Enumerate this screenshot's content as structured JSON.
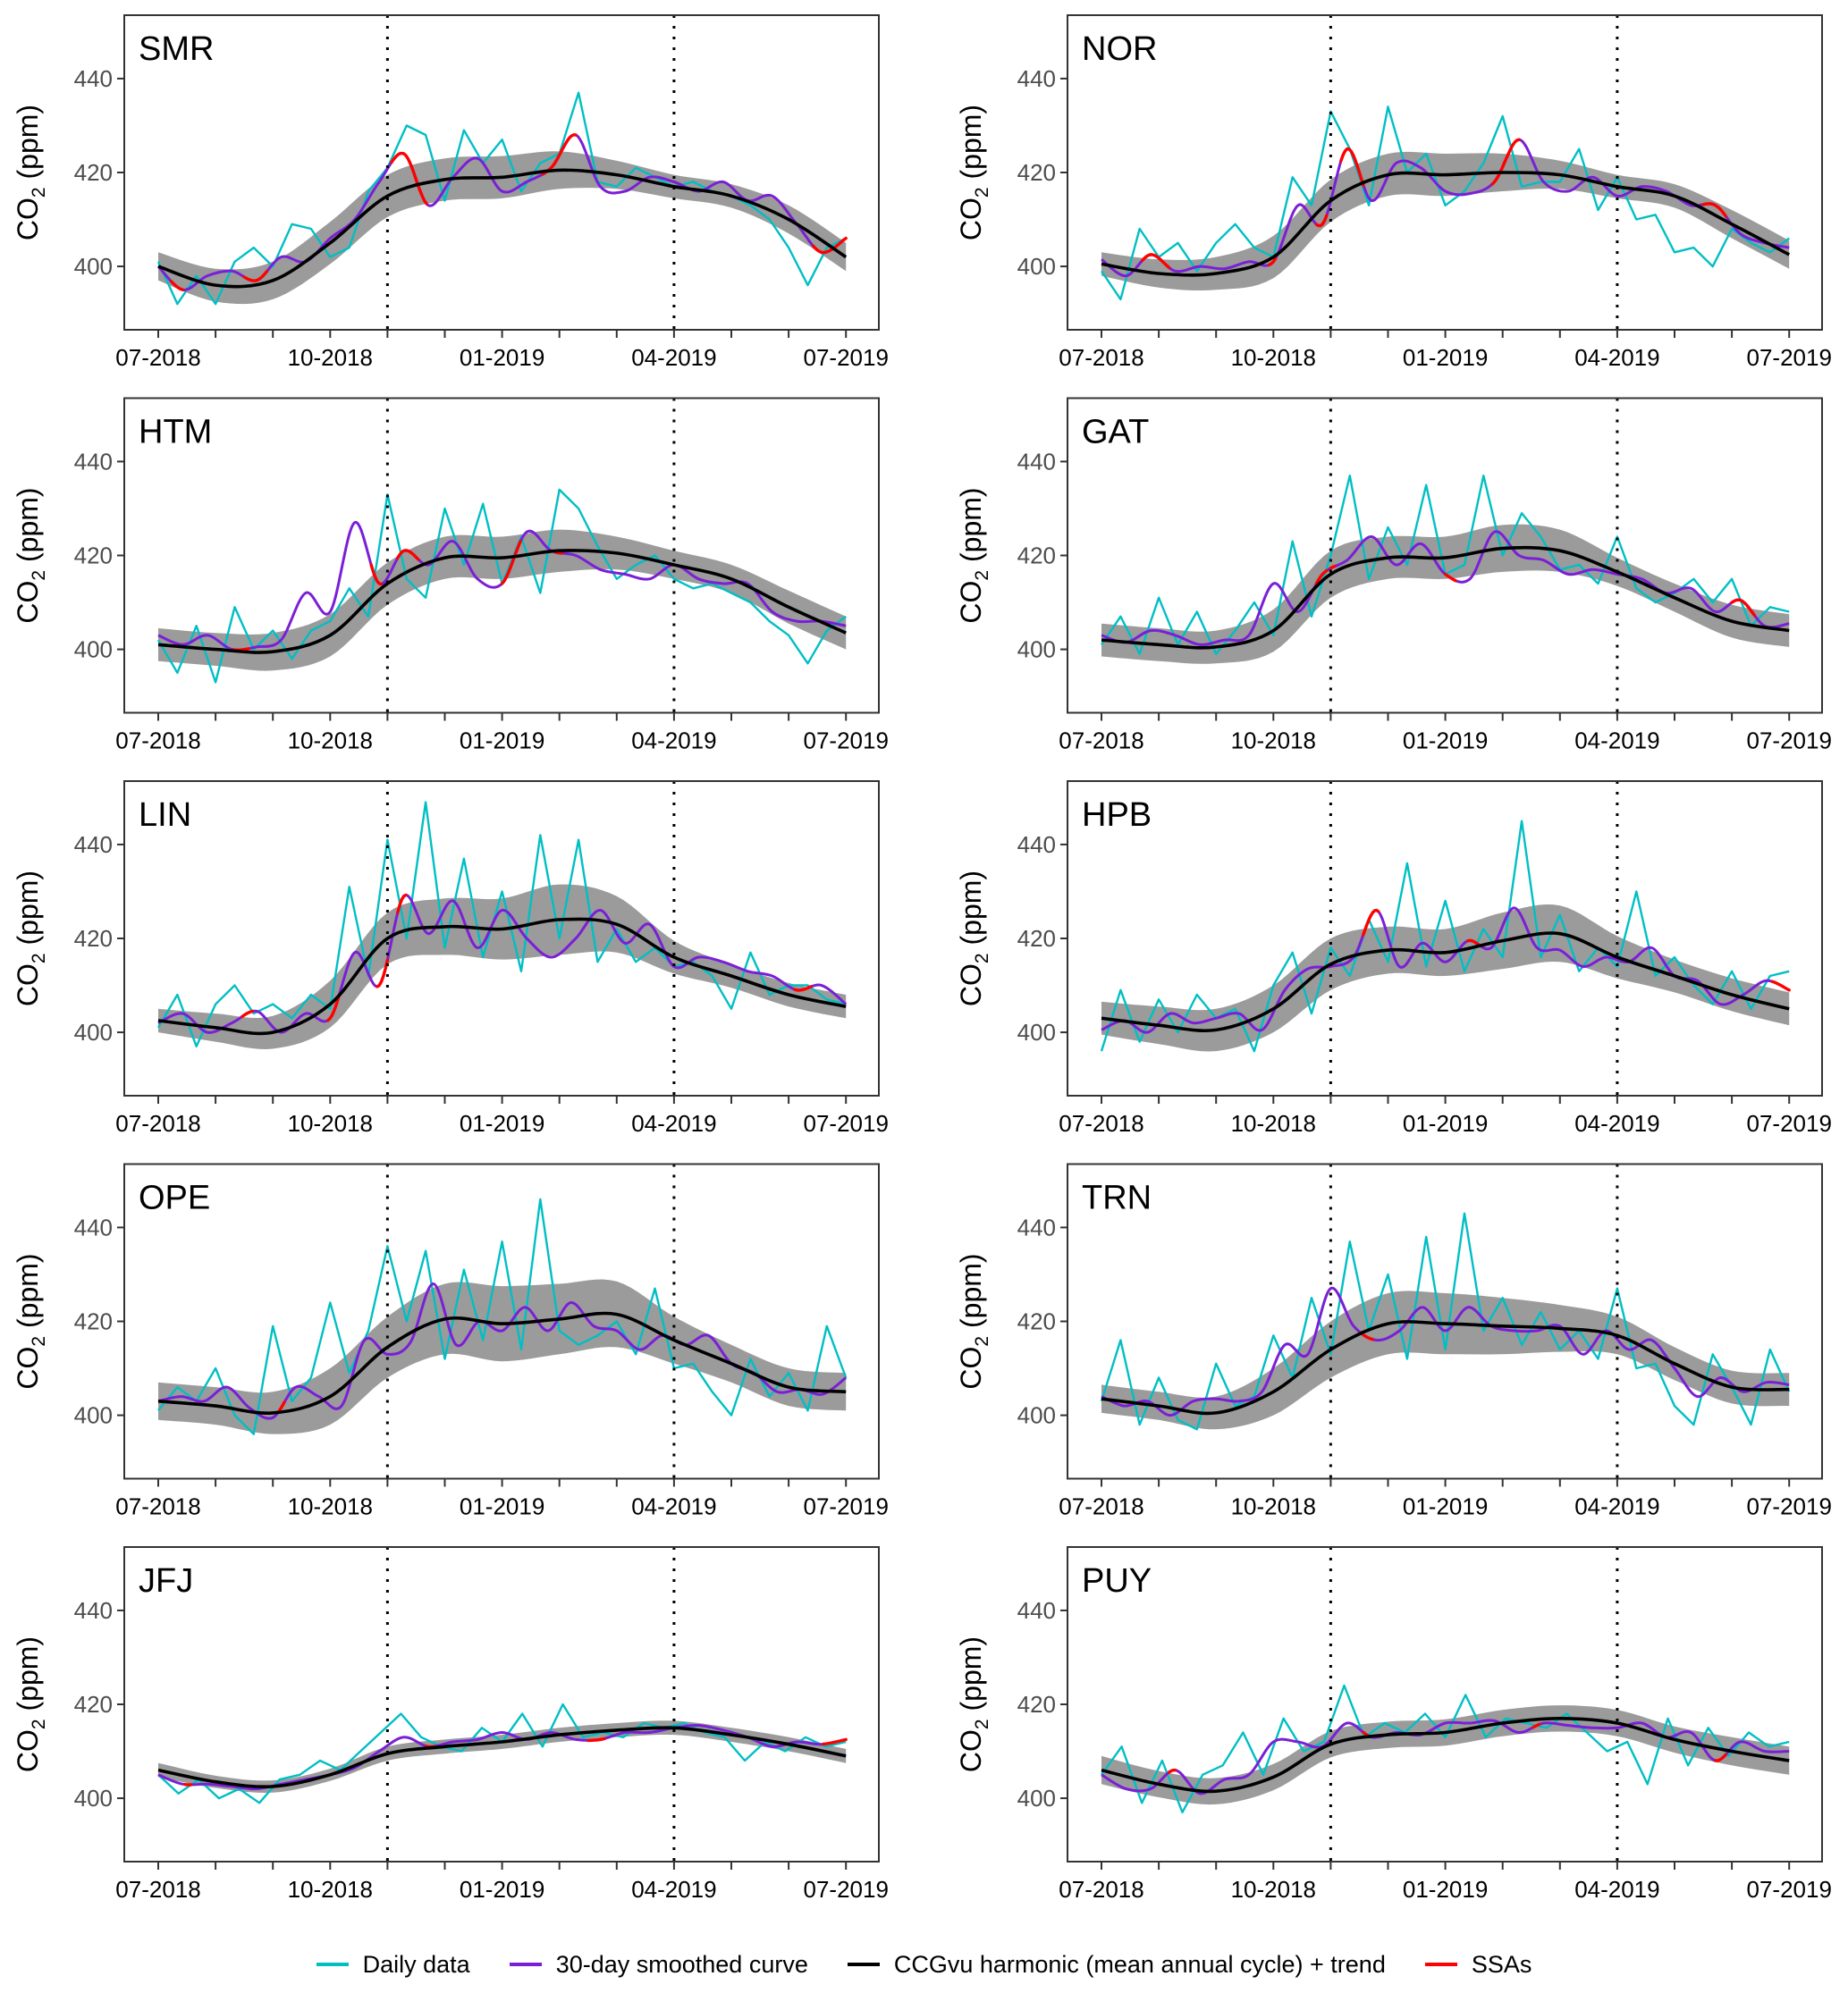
{
  "chart_data": {
    "type": "line",
    "layout": "small-multiples 5 rows x 2 columns",
    "ylabel": "CO2 (ppm)",
    "ylim": [
      386.5,
      453.5
    ],
    "yticks": [
      400,
      420,
      440
    ],
    "x_months": [
      "07-2018",
      "08-2018",
      "09-2018",
      "10-2018",
      "11-2018",
      "12-2018",
      "01-2019",
      "02-2019",
      "03-2019",
      "04-2019",
      "05-2019",
      "06-2019",
      "07-2019"
    ],
    "xtick_labels": [
      "07-2018",
      "10-2018",
      "01-2019",
      "04-2019",
      "07-2019"
    ],
    "xtick_label_month_index": [
      0,
      3,
      6,
      9,
      12
    ],
    "vlines_month_index": [
      4,
      9
    ],
    "vline_style": "dotted",
    "legend": {
      "position": "bottom",
      "items": [
        {
          "label": "Daily data",
          "color": "#00BFC4"
        },
        {
          "label": "30-day smoothed curve",
          "color": "#7B1FD6"
        },
        {
          "label": "CCGvu harmonic (mean annual cycle) + trend",
          "color": "#000000"
        },
        {
          "label": "SSAs",
          "color": "#FF0000"
        }
      ]
    },
    "band_color": "#7f7f7f",
    "panels": [
      {
        "station": "SMR",
        "trend": [
          400,
          396,
          397,
          405,
          415,
          418.5,
          419,
          420.5,
          419.5,
          417,
          415,
          410,
          402
        ],
        "band_halfwidth": [
          3,
          3.5,
          4,
          4.5,
          4.5,
          4.5,
          4.5,
          4,
          3,
          2.5,
          2.5,
          3,
          3
        ],
        "smoothed": [
          400,
          395,
          398,
          399,
          397,
          402,
          401,
          406,
          410,
          418,
          424,
          413,
          419,
          423,
          416,
          418,
          421,
          428,
          417,
          416,
          419,
          418,
          416,
          418,
          414,
          415,
          409,
          403,
          406
        ],
        "daily": [
          401,
          392,
          398,
          392,
          401,
          404,
          400,
          409,
          408,
          402,
          404,
          416,
          421,
          430,
          428,
          414,
          429,
          422,
          427,
          416,
          422,
          424,
          437,
          418,
          417,
          421,
          419,
          417,
          418,
          416,
          415,
          413,
          410,
          404,
          396,
          404,
          406
        ],
        "ssa_ranges": [
          [
            0.2,
            0.45
          ],
          [
            1.5,
            1.9
          ],
          [
            4.05,
            4.7
          ],
          [
            6.7,
            7.3
          ],
          [
            11.4,
            12.0
          ]
        ]
      },
      {
        "station": "NOR",
        "trend": [
          400.5,
          398.5,
          398.5,
          402,
          414,
          419.5,
          419.5,
          420,
          419.5,
          417,
          415,
          409,
          402.5
        ],
        "band_halfwidth": [
          2.5,
          3,
          3.5,
          4.5,
          4.5,
          4.5,
          4.5,
          4,
          3,
          2.5,
          2.5,
          3,
          3
        ],
        "smoothed": [
          401.5,
          398,
          402.5,
          399,
          400,
          399.5,
          401,
          401,
          413,
          409,
          425,
          414,
          422,
          421,
          416,
          415.5,
          418,
          427,
          418,
          416,
          419,
          415,
          417,
          416,
          413,
          413,
          407,
          405,
          404
        ],
        "daily": [
          399,
          393,
          408,
          402,
          405,
          399,
          405,
          409,
          404,
          402,
          419,
          413,
          433,
          425,
          413,
          434,
          420,
          424,
          413,
          416,
          422,
          432,
          417,
          418,
          418,
          425,
          412,
          419,
          410,
          411,
          403,
          404,
          400,
          408,
          405,
          403,
          406
        ],
        "ssa_ranges": [
          [
            0.7,
            1.2
          ],
          [
            2.9,
            3.05
          ],
          [
            3.75,
            3.95
          ],
          [
            4.15,
            4.6
          ],
          [
            6.8,
            7.3
          ],
          [
            10.5,
            10.9
          ]
        ]
      },
      {
        "station": "HTM",
        "trend": [
          401,
          400,
          399.5,
          403,
          414,
          419.5,
          419.5,
          421,
          420.5,
          418,
          415,
          409,
          403.5
        ],
        "band_halfwidth": [
          3.5,
          3.5,
          4,
          4.5,
          4.5,
          4.5,
          4.5,
          4.5,
          3.5,
          3,
          3,
          3.5,
          3.5
        ],
        "smoothed": [
          403,
          401,
          403,
          400,
          400.5,
          402,
          412,
          408,
          427,
          414,
          421,
          418,
          423,
          415,
          414,
          425,
          421,
          420,
          417,
          416,
          415,
          418,
          415,
          414,
          414,
          408,
          406,
          406,
          405
        ],
        "daily": [
          402,
          395,
          405,
          393,
          409,
          400,
          404,
          398,
          404,
          406,
          413,
          407,
          433,
          415,
          411,
          430,
          418,
          431,
          414,
          424,
          412,
          434,
          430,
          422,
          415,
          418,
          420,
          415,
          413,
          414,
          412,
          410,
          406,
          403,
          397,
          404,
          407
        ],
        "ssa_ranges": [
          [
            1.3,
            1.6
          ],
          [
            3.7,
            3.9
          ],
          [
            4.15,
            4.55
          ],
          [
            6.0,
            6.35
          ],
          [
            6.9,
            7.05
          ]
        ]
      },
      {
        "station": "GAT",
        "trend": [
          402,
          401,
          400.5,
          404,
          416,
          419.5,
          419.5,
          421.5,
          421,
          416.5,
          411,
          406,
          404
        ],
        "band_halfwidth": [
          3.5,
          3.5,
          3.5,
          4.5,
          5,
          4.5,
          4.5,
          5,
          4.5,
          3,
          3,
          3.5,
          3.5
        ],
        "smoothed": [
          403,
          401.5,
          404,
          403,
          401,
          402,
          403,
          414,
          408,
          416,
          419,
          424,
          418,
          422.5,
          416,
          415,
          425,
          420,
          419,
          416,
          417,
          416,
          415,
          412,
          413,
          408,
          410.5,
          405,
          405.5
        ],
        "daily": [
          401,
          407,
          399,
          411,
          401,
          408,
          399,
          404,
          410,
          403,
          423,
          407,
          420,
          437,
          415,
          426,
          418,
          435,
          416,
          418,
          437,
          420,
          429,
          424,
          417,
          418,
          414,
          424,
          413,
          410,
          412,
          415,
          410,
          415,
          405,
          409,
          408
        ],
        "ssa_ranges": [
          [
            3.75,
            3.95
          ],
          [
            4.0,
            4.1
          ],
          [
            6.0,
            6.2
          ],
          [
            11.0,
            11.4
          ]
        ]
      },
      {
        "station": "LIN",
        "trend": [
          402.5,
          401,
          400,
          406,
          420,
          422.5,
          422,
          424,
          423,
          416,
          412,
          408,
          405.5
        ],
        "band_halfwidth": [
          2.5,
          3,
          3.5,
          5,
          5.5,
          6,
          6.5,
          7.5,
          6,
          3.5,
          2.5,
          2.5,
          2.5
        ],
        "smoothed": [
          402,
          404,
          400,
          402,
          404.5,
          400,
          404,
          403,
          417,
          410,
          429,
          421,
          428,
          418,
          426,
          420,
          416,
          420,
          426,
          419,
          423,
          414,
          416,
          415,
          413,
          412,
          409,
          410,
          406
        ],
        "daily": [
          401,
          408,
          397,
          406,
          410,
          404,
          406,
          403,
          408,
          405,
          431,
          412,
          441,
          420,
          449,
          418,
          437,
          416,
          430,
          413,
          442,
          420,
          441,
          415,
          422,
          415,
          418,
          414,
          415,
          412,
          405,
          417,
          408,
          410,
          410,
          407,
          406
        ],
        "ssa_ranges": [
          [
            1.45,
            1.65
          ],
          [
            2.95,
            3.15
          ],
          [
            3.8,
            4.0
          ],
          [
            4.15,
            4.35
          ],
          [
            11.1,
            11.4
          ]
        ]
      },
      {
        "station": "HPB",
        "trend": [
          403,
          401.5,
          400.5,
          405,
          414.5,
          417.5,
          417,
          419.5,
          421,
          416,
          412,
          408,
          405
        ],
        "band_halfwidth": [
          3.5,
          4,
          4.5,
          5,
          5.5,
          5,
          5,
          6,
          6,
          4.5,
          3.5,
          3.5,
          3.5
        ],
        "smoothed": [
          400.5,
          402.5,
          400,
          404,
          402,
          403,
          404,
          400.5,
          409,
          413.5,
          414,
          416,
          426,
          414,
          419,
          415,
          419.5,
          418,
          426.5,
          418,
          417.5,
          414,
          416,
          415,
          418,
          412,
          411,
          406,
          408,
          411,
          409
        ],
        "daily": [
          396,
          409,
          398,
          407,
          400,
          408,
          403,
          405,
          396,
          410,
          417,
          404,
          418,
          412,
          424,
          415,
          436,
          414,
          428,
          413,
          422,
          416,
          445,
          416,
          425,
          413,
          418,
          414,
          430,
          412,
          416,
          410,
          406,
          413,
          405,
          412,
          413
        ],
        "ssa_ranges": [
          [
            4.55,
            4.85
          ],
          [
            6.4,
            6.6
          ],
          [
            11.7,
            12.0
          ]
        ]
      },
      {
        "station": "OPE",
        "trend": [
          403,
          402,
          400.5,
          404,
          414.5,
          420.5,
          419.5,
          420.5,
          421.5,
          416,
          411,
          406,
          405
        ],
        "band_halfwidth": [
          4,
          4,
          4.5,
          6,
          6.5,
          7.5,
          8,
          7.5,
          7,
          5,
          4,
          4,
          4
        ],
        "smoothed": [
          403,
          404,
          403,
          406,
          401.5,
          399.5,
          406,
          404,
          402,
          416,
          413,
          415.5,
          428,
          415,
          420,
          418,
          423,
          418,
          424,
          419,
          418,
          414,
          417,
          415,
          417,
          411,
          409,
          405,
          405.5,
          404.5,
          408
        ],
        "daily": [
          401,
          406,
          403,
          410,
          400,
          396,
          419,
          403,
          408,
          424,
          409,
          418,
          436,
          420,
          435,
          412,
          431,
          416,
          437,
          414,
          446,
          418,
          415,
          417,
          420,
          413,
          427,
          410,
          411,
          405,
          400,
          412,
          404,
          409,
          401,
          419,
          408
        ],
        "ssa_ranges": [
          [
            2.1,
            2.2
          ]
        ]
      },
      {
        "station": "TRN",
        "trend": [
          403.5,
          402,
          400.5,
          405,
          414,
          419.5,
          419.5,
          419,
          418.5,
          417,
          411,
          406,
          405.5
        ],
        "band_halfwidth": [
          3,
          3,
          3.5,
          5,
          6,
          6.5,
          6.5,
          6,
          5,
          4,
          3.5,
          3.5,
          3.5
        ],
        "smoothed": [
          404,
          402,
          403,
          400,
          403,
          403.5,
          403,
          405,
          415,
          413,
          427,
          419,
          416,
          418,
          423,
          418,
          423,
          419,
          418,
          418,
          419,
          413,
          418,
          414,
          416,
          410,
          404,
          408,
          405,
          407,
          406.5
        ],
        "daily": [
          403,
          416,
          398,
          408,
          399,
          397,
          411,
          402,
          404,
          417,
          408,
          425,
          413,
          437,
          418,
          430,
          412,
          438,
          414,
          443,
          418,
          425,
          415,
          422,
          414,
          418,
          412,
          427,
          410,
          411,
          402,
          398,
          413,
          406,
          398,
          414,
          405
        ],
        "ssa_ranges": [
          [
            4.55,
            4.75
          ]
        ]
      },
      {
        "station": "JFJ",
        "trend": [
          406,
          403.5,
          402.5,
          405,
          409.5,
          411,
          412,
          413.5,
          414.5,
          415,
          413.5,
          411.5,
          409
        ],
        "band_halfwidth": [
          1.5,
          1.3,
          1.3,
          1.3,
          1.5,
          1.5,
          1.5,
          1.5,
          1.5,
          1.5,
          1.5,
          1.5,
          1.5
        ],
        "smoothed": [
          405,
          403,
          403,
          402.5,
          402,
          403,
          404,
          405,
          406.5,
          410,
          413,
          411,
          412,
          412.5,
          414,
          412.5,
          414,
          412.5,
          412.5,
          414,
          414,
          415,
          415.5,
          414.5,
          413,
          411,
          412,
          411.5,
          412.5
        ],
        "daily": [
          405,
          401,
          404,
          400,
          402,
          399,
          404,
          405,
          408,
          406,
          410,
          414,
          418,
          413,
          411,
          410,
          415,
          412,
          418,
          411,
          420,
          413,
          414,
          413,
          416,
          415,
          416,
          414,
          413,
          408,
          412,
          410,
          413,
          411,
          412
        ],
        "ssa_ranges": [
          [
            0.45,
            0.6
          ],
          [
            4.65,
            4.85
          ],
          [
            7.5,
            7.8
          ],
          [
            11.6,
            12.0
          ]
        ]
      },
      {
        "station": "PUY",
        "trend": [
          406,
          403,
          401.5,
          404.5,
          411.5,
          413.5,
          414,
          416,
          417,
          416,
          412.5,
          410,
          408
        ],
        "band_halfwidth": [
          3,
          2.8,
          2.8,
          2.8,
          2.8,
          2.8,
          2.8,
          2.8,
          2.8,
          2.8,
          2.8,
          3,
          3
        ],
        "smoothed": [
          405,
          402,
          402,
          406,
          401,
          404,
          405,
          412,
          412,
          411,
          416,
          413,
          414,
          413.5,
          416,
          416,
          416.5,
          414,
          416,
          415.5,
          415,
          415,
          416,
          413,
          414,
          408,
          412,
          410,
          410
        ],
        "daily": [
          405,
          411,
          399,
          408,
          397,
          405,
          407,
          414,
          405,
          417,
          410,
          412,
          424,
          413,
          416,
          414,
          418,
          413,
          422,
          413,
          417,
          416,
          415,
          418,
          414,
          410,
          412,
          403,
          417,
          407,
          415,
          409,
          414,
          411,
          412
        ],
        "ssa_ranges": [
          [
            1.15,
            1.3
          ],
          [
            4.55,
            4.7
          ],
          [
            7.5,
            7.65
          ],
          [
            10.7,
            10.9
          ]
        ]
      }
    ]
  }
}
